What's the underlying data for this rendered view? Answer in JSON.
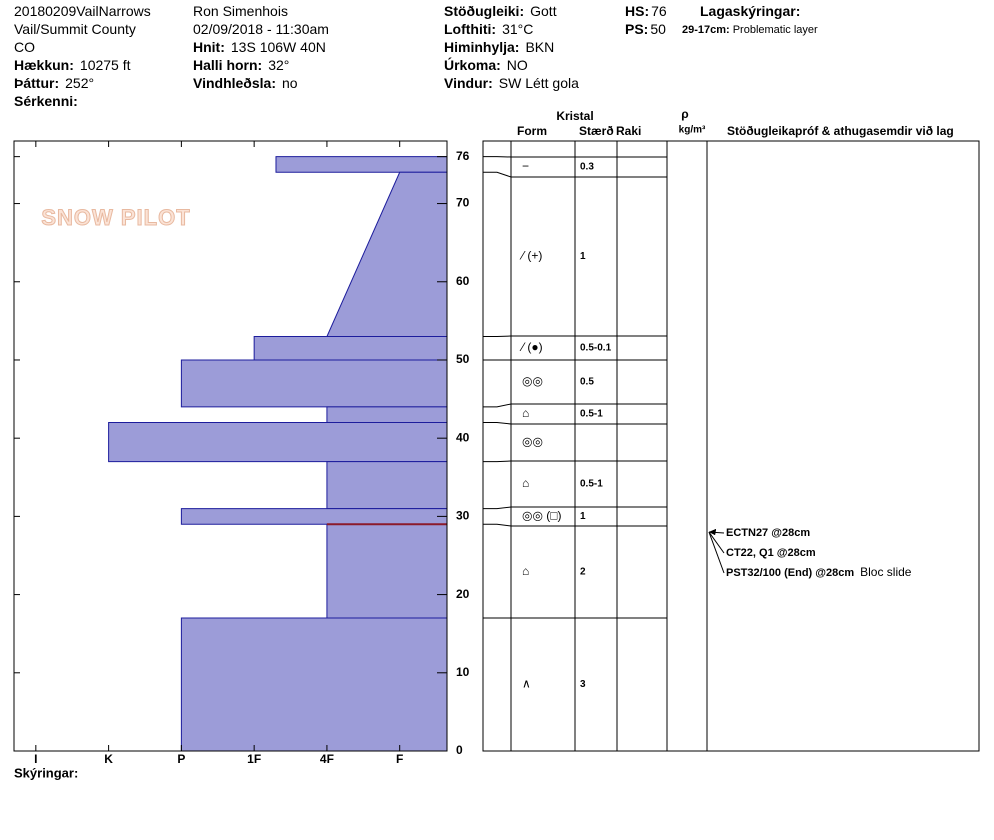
{
  "header": {
    "columns": [
      [
        {
          "value": "20180209VailNarrows"
        },
        {
          "value": "Vail/Summit County"
        },
        {
          "value": "CO"
        },
        {
          "label": "Hækkun:",
          "value": "10275 ft"
        },
        {
          "label": "Þáttur:",
          "value": "252°"
        },
        {
          "label": "Sérkenni:"
        }
      ],
      [
        {
          "value": "Ron Simenhois"
        },
        {
          "value": "02/09/2018 - 11:30am"
        },
        {
          "label": "Hnit:",
          "value": "13S 106W 40N"
        },
        {
          "label": "Halli horn:",
          "value": "32°"
        },
        {
          "label": "Vindhleðsla:",
          "value": "no"
        }
      ],
      [
        {
          "label": "Stöðugleiki:",
          "value": "Gott"
        },
        {
          "label": "Lofthiti:",
          "value": "31°C"
        },
        {
          "label": "Himinhylja:",
          "value": "BKN"
        },
        {
          "label": "Úrkoma:",
          "value": "NO"
        },
        {
          "label": "Vindur:",
          "value": "SW  Létt gola"
        }
      ],
      [
        {
          "label": "HS:",
          "value": "76"
        },
        {
          "label": "PS:",
          "value": "50"
        }
      ],
      [
        {
          "label": "Lagaskýringar:"
        },
        {
          "label": "29-17cm:",
          "value": "Problematic layer"
        }
      ]
    ],
    "logo": "SNOW PILOT",
    "footer": "Skýringar:"
  },
  "chart_data": {
    "type": "snow-profile",
    "color": "#9c9cd8",
    "line_color": "#1c1c9c",
    "problem_color": "#8b1a2a",
    "ylim": [
      0,
      78
    ],
    "yticks": [
      0,
      10,
      20,
      30,
      40,
      50,
      60,
      70,
      76
    ],
    "xlim": [
      -0.3,
      5.65
    ],
    "xticks": [
      {
        "value": 0,
        "label": "I"
      },
      {
        "value": 1,
        "label": "K"
      },
      {
        "value": 2,
        "label": "P"
      },
      {
        "value": 3,
        "label": "1F"
      },
      {
        "value": 4,
        "label": "4F"
      },
      {
        "value": 5,
        "label": "F"
      }
    ],
    "table_headers": {
      "crystal": "Kristal",
      "form": "Form",
      "size": "Stærð",
      "moisture": "Raki",
      "density": "ρ",
      "density_unit": "kg/m³",
      "tests": "Stöðugleikapróf & athugasemdir við lag"
    },
    "layers": [
      {
        "top": 76,
        "bottom": 74,
        "hardness": 3.3,
        "form": "−",
        "size": "0.3"
      },
      {
        "top": 74,
        "bottom": 53,
        "hardness": 5,
        "hardness_bottom": 4,
        "form": "⁄ (+)",
        "size": "1"
      },
      {
        "top": 53,
        "bottom": 50,
        "hardness": 3,
        "form": "⁄ (●)",
        "size": "0.5-0.1"
      },
      {
        "top": 50,
        "bottom": 44,
        "hardness": 2,
        "form": "◎◎",
        "size": "0.5"
      },
      {
        "top": 44,
        "bottom": 42,
        "hardness": 4,
        "form": "⌂",
        "size": "0.5-1"
      },
      {
        "top": 42,
        "bottom": 37,
        "hardness": 1,
        "form": "◎◎"
      },
      {
        "top": 37,
        "bottom": 31,
        "hardness": 4,
        "form": "⌂",
        "size": "0.5-1"
      },
      {
        "top": 31,
        "bottom": 29,
        "hardness": 2,
        "form": "◎◎ (□)",
        "size": "1"
      },
      {
        "top": 29,
        "bottom": 17,
        "hardness": 4,
        "form": "⌂",
        "size": "2"
      },
      {
        "top": 17,
        "bottom": 0,
        "hardness": 2,
        "form": "∧",
        "size": "3"
      }
    ],
    "problem_layer": 8,
    "tests": [
      {
        "label": "ECTN27 @28cm",
        "height": 28
      },
      {
        "label": "CT22, Q1 @28cm",
        "height": 28
      },
      {
        "label": "PST32/100 (End) @28cm",
        "height": 28,
        "comment": "Bloc slide"
      }
    ]
  }
}
